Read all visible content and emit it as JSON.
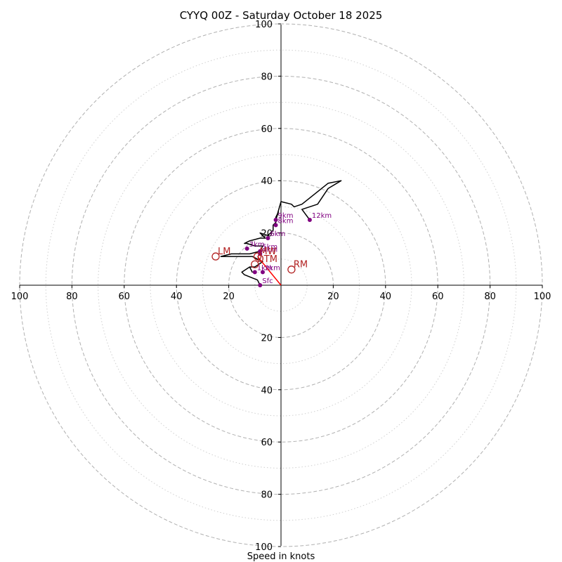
{
  "chart_data": {
    "type": "hodograph",
    "title": "CYYQ 00Z - Saturday October 18 2025",
    "xlabel": "Speed in knots",
    "axis_range": [
      -100,
      100
    ],
    "rings_major": [
      20,
      40,
      60,
      80,
      100
    ],
    "rings_minor": [
      10,
      30,
      50,
      70,
      90
    ],
    "tick_labels": {
      "x": [
        "100",
        "80",
        "60",
        "40",
        "20",
        "20",
        "40",
        "60",
        "80",
        "100"
      ],
      "y_top": [
        "100",
        "80",
        "60",
        "40",
        "20"
      ],
      "y_bottom": [
        "20",
        "40",
        "60",
        "80",
        "100"
      ]
    },
    "colors": {
      "trace": "#000000",
      "height_markers": "#800080",
      "motion": "#b22222",
      "mean_wind_vector": "#ff0000",
      "rings": "#b0b0b0"
    },
    "trace_uv": [
      [
        -8,
        0
      ],
      [
        -9,
        2
      ],
      [
        -14,
        4
      ],
      [
        -15,
        5
      ],
      [
        -12,
        7
      ],
      [
        -11,
        5
      ],
      [
        -12,
        7
      ],
      [
        -10,
        7
      ],
      [
        -7,
        9
      ],
      [
        -9,
        10
      ],
      [
        -11,
        11
      ],
      [
        -23,
        11
      ],
      [
        -19,
        12
      ],
      [
        -12,
        12
      ],
      [
        -8,
        13
      ],
      [
        -7,
        15
      ],
      [
        -10,
        15
      ],
      [
        -13,
        16
      ],
      [
        -14,
        16
      ],
      [
        -12,
        17
      ],
      [
        -8,
        18
      ],
      [
        -6,
        18
      ],
      [
        -8,
        20
      ],
      [
        -5,
        19
      ],
      [
        -3,
        21
      ],
      [
        -3,
        23
      ],
      [
        -2,
        24
      ],
      [
        -2,
        26
      ],
      [
        -1,
        28
      ],
      [
        -2,
        25
      ],
      [
        0,
        32
      ],
      [
        4,
        31
      ],
      [
        5,
        30
      ],
      [
        8,
        31
      ],
      [
        18,
        39
      ],
      [
        23,
        40
      ],
      [
        18,
        37
      ],
      [
        14,
        31
      ],
      [
        8,
        29
      ],
      [
        11,
        25
      ]
    ],
    "height_markers": [
      {
        "label": "Sfc",
        "u": -8,
        "v": 0
      },
      {
        "label": "1km",
        "u": -10,
        "v": 5
      },
      {
        "label": "2km",
        "u": -7,
        "v": 5
      },
      {
        "label": "3km",
        "u": -13,
        "v": 14
      },
      {
        "label": "4km",
        "u": -8,
        "v": 12
      },
      {
        "label": "5km",
        "u": -8,
        "v": 13
      },
      {
        "label": "6km",
        "u": -5,
        "v": 18
      },
      {
        "label": "8km",
        "u": -2,
        "v": 23
      },
      {
        "label": "9km",
        "u": -2,
        "v": 25
      },
      {
        "label": "12km",
        "u": 11,
        "v": 25
      }
    ],
    "motions": [
      {
        "label": "LM",
        "u": -25,
        "v": 11
      },
      {
        "label": "RM",
        "u": 4,
        "v": 6
      },
      {
        "label": "MW",
        "u": -9,
        "v": 11
      },
      {
        "label": "DTM",
        "u": -10,
        "v": 8
      }
    ],
    "mean_wind_vector": {
      "from": [
        0,
        0
      ],
      "to": [
        -9,
        11
      ]
    }
  }
}
